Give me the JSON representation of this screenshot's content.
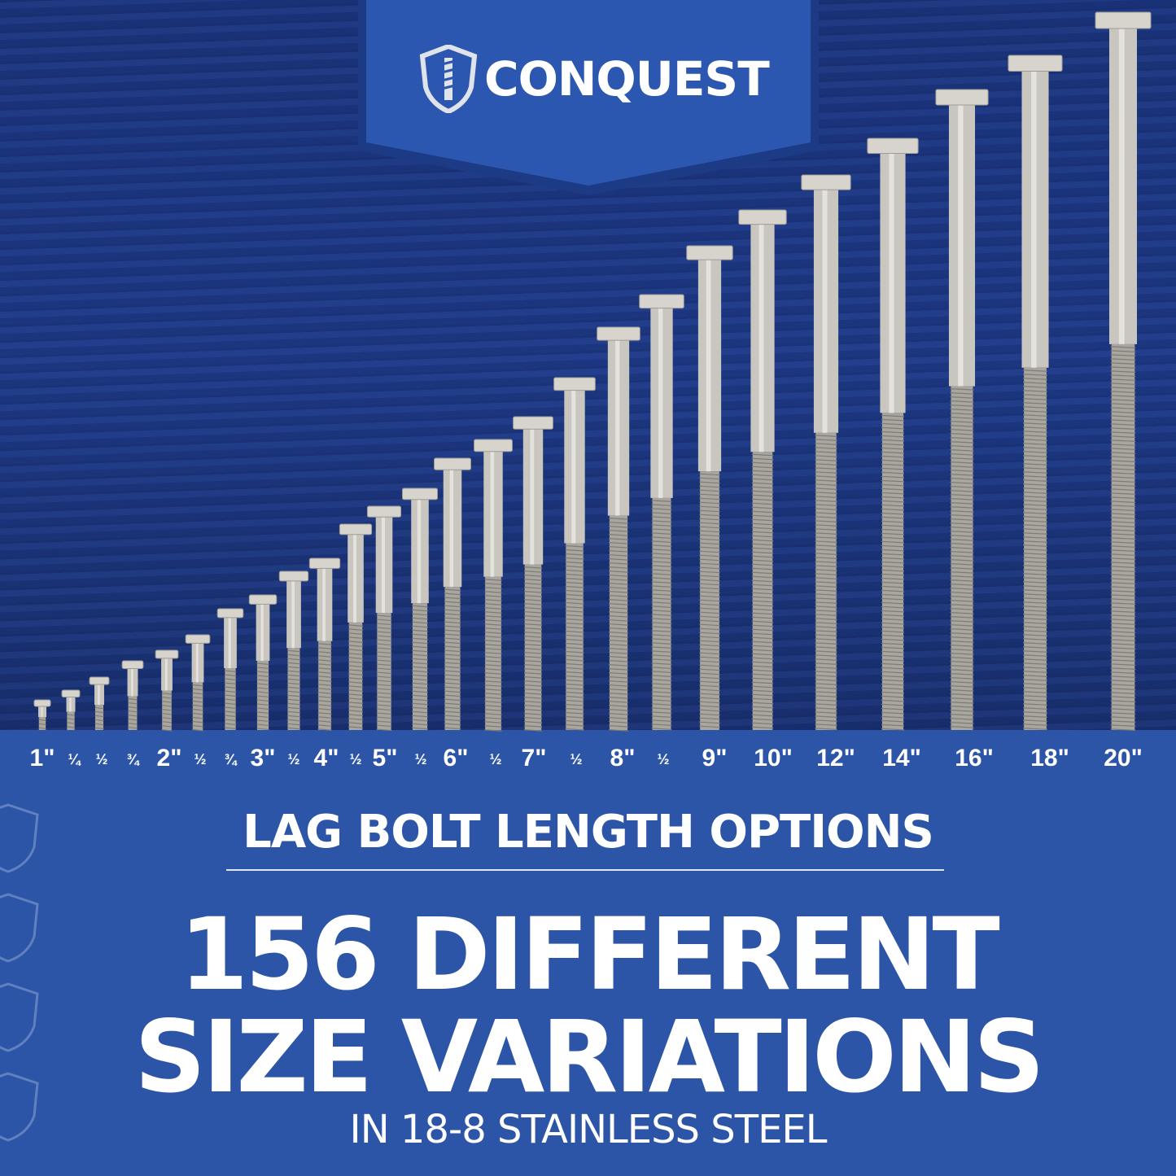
{
  "brand": {
    "name": "CONQUEST",
    "logo_icon": "shield-screw-icon"
  },
  "colors": {
    "background_blue": "#2c55a8",
    "wood_blue": "#1e3a8a",
    "banner_blue": "#2b57b0",
    "steel": "#c9c6bf"
  },
  "length_labels": [
    {
      "text": "1\"",
      "size": "big"
    },
    {
      "text": "¼",
      "size": "small"
    },
    {
      "text": "½",
      "size": "small"
    },
    {
      "text": "¾",
      "size": "small"
    },
    {
      "text": "2\"",
      "size": "big"
    },
    {
      "text": "½",
      "size": "small"
    },
    {
      "text": "¾",
      "size": "small"
    },
    {
      "text": "3\"",
      "size": "big"
    },
    {
      "text": "½",
      "size": "small"
    },
    {
      "text": "4\"",
      "size": "big"
    },
    {
      "text": "½",
      "size": "small"
    },
    {
      "text": "5\"",
      "size": "big"
    },
    {
      "text": "½",
      "size": "small"
    },
    {
      "text": "6\"",
      "size": "big"
    },
    {
      "text": "½",
      "size": "small"
    },
    {
      "text": "7\"",
      "size": "big"
    },
    {
      "text": "½",
      "size": "small"
    },
    {
      "text": "8\"",
      "size": "big"
    },
    {
      "text": "½",
      "size": "small"
    },
    {
      "text": "9\"",
      "size": "big"
    },
    {
      "text": "10\"",
      "size": "big"
    },
    {
      "text": "12\"",
      "size": "big"
    },
    {
      "text": "14\"",
      "size": "big"
    },
    {
      "text": "16\"",
      "size": "big"
    },
    {
      "text": "18\"",
      "size": "big"
    },
    {
      "text": "20\"",
      "size": "big"
    }
  ],
  "subtitle": "LAG BOLT LENGTH OPTIONS",
  "headline": {
    "line1": "156 DIFFERENT",
    "line2": "SIZE VARIATIONS"
  },
  "tagline": "IN 18-8 STAINLESS STEEL"
}
